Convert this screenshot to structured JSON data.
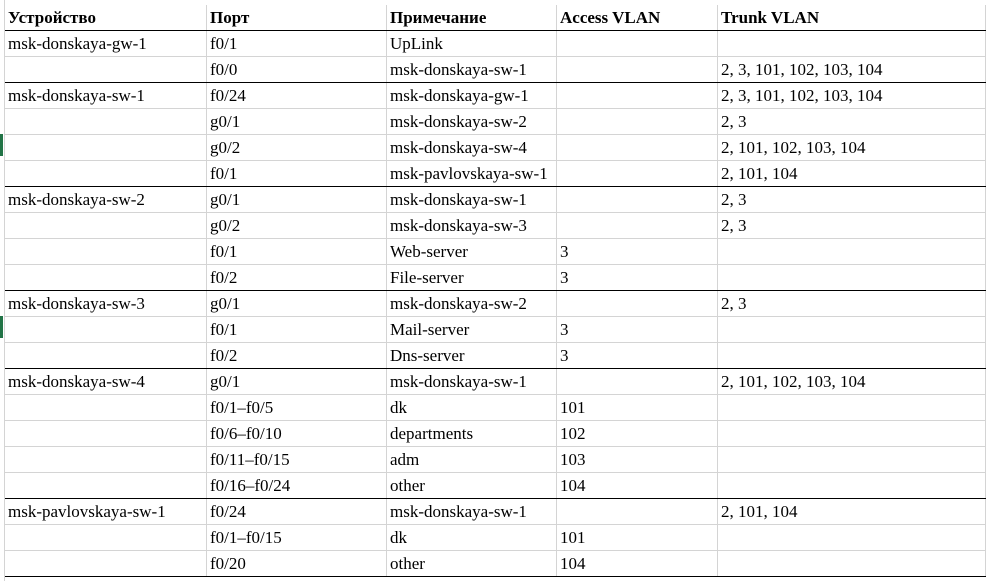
{
  "header": {
    "device": "Устройство",
    "port": "Порт",
    "note": "Примечание",
    "access_vlan": "Access VLAN",
    "trunk_vlan": "Trunk VLAN"
  },
  "rows": [
    {
      "device": "msk-donskaya-gw-1",
      "port": "f0/1",
      "note": "UpLink",
      "access": "",
      "trunk": ""
    },
    {
      "device": "",
      "port": "f0/0",
      "note": "msk-donskaya-sw-1",
      "access": "",
      "trunk": "2, 3, 101, 102, 103, 104"
    },
    {
      "device": "msk-donskaya-sw-1",
      "port": "f0/24",
      "note": "msk-donskaya-gw-1",
      "access": "",
      "trunk": "2, 3, 101, 102, 103, 104"
    },
    {
      "device": "",
      "port": "g0/1",
      "note": "msk-donskaya-sw-2",
      "access": "",
      "trunk": "2, 3"
    },
    {
      "device": "",
      "port": "g0/2",
      "note": "msk-donskaya-sw-4",
      "access": "",
      "trunk": "2, 101, 102, 103, 104"
    },
    {
      "device": "",
      "port": "f0/1",
      "note": "msk-pavlovskaya-sw-1",
      "access": "",
      "trunk": "2, 101, 104"
    },
    {
      "device": "msk-donskaya-sw-2",
      "port": "g0/1",
      "note": "msk-donskaya-sw-1",
      "access": "",
      "trunk": "2, 3"
    },
    {
      "device": "",
      "port": "g0/2",
      "note": "msk-donskaya-sw-3",
      "access": "",
      "trunk": "2, 3"
    },
    {
      "device": "",
      "port": "f0/1",
      "note": "Web-server",
      "access": "3",
      "trunk": ""
    },
    {
      "device": "",
      "port": "f0/2",
      "note": "File-server",
      "access": "3",
      "trunk": ""
    },
    {
      "device": "msk-donskaya-sw-3",
      "port": "g0/1",
      "note": "msk-donskaya-sw-2",
      "access": "",
      "trunk": "2, 3"
    },
    {
      "device": "",
      "port": "f0/1",
      "note": "Mail-server",
      "access": "3",
      "trunk": ""
    },
    {
      "device": "",
      "port": "f0/2",
      "note": "Dns-server",
      "access": "3",
      "trunk": ""
    },
    {
      "device": "msk-donskaya-sw-4",
      "port": "g0/1",
      "note": "msk-donskaya-sw-1",
      "access": "",
      "trunk": "2, 101, 102, 103, 104"
    },
    {
      "device": "",
      "port": "f0/1–f0/5",
      "note": "dk",
      "access": "101",
      "trunk": ""
    },
    {
      "device": "",
      "port": "f0/6–f0/10",
      "note": "departments",
      "access": "102",
      "trunk": ""
    },
    {
      "device": "",
      "port": "f0/11–f0/15",
      "note": "adm",
      "access": "103",
      "trunk": ""
    },
    {
      "device": "",
      "port": "f0/16–f0/24",
      "note": "other",
      "access": "104",
      "trunk": ""
    },
    {
      "device": "msk-pavlovskaya-sw-1",
      "port": "f0/24",
      "note": "msk-donskaya-sw-1",
      "access": "",
      "trunk": "2, 101, 104"
    },
    {
      "device": "",
      "port": "f0/1–f0/15",
      "note": "dk",
      "access": "101",
      "trunk": ""
    },
    {
      "device": "",
      "port": "f0/20",
      "note": "other",
      "access": "104",
      "trunk": ""
    }
  ],
  "colors": {
    "text": "#000000",
    "gridline": "#d4d4d4",
    "group_border": "#000000",
    "selection_marker": "#217346"
  }
}
